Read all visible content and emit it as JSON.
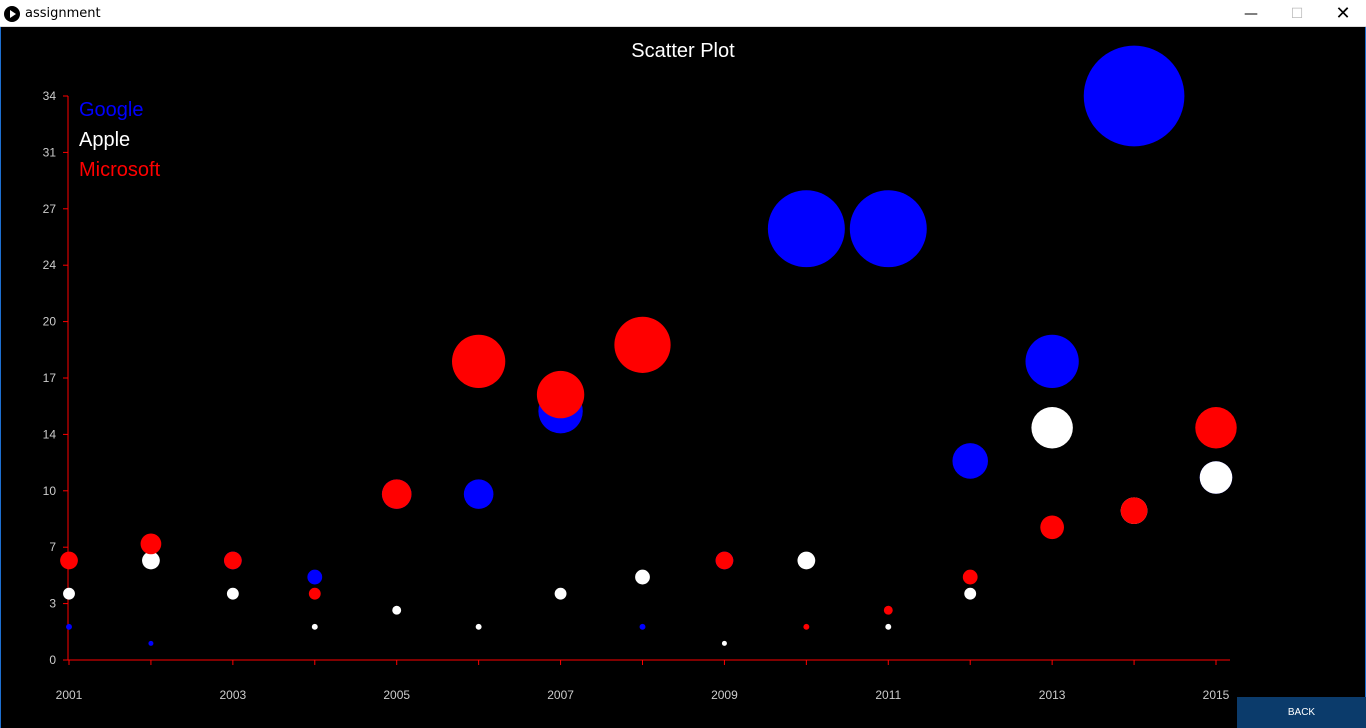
{
  "window": {
    "title": "assignment",
    "minimize": "—",
    "maximize": "☐",
    "close": "✕"
  },
  "back_label": "BACK",
  "colors": {
    "google": "#0000ff",
    "apple": "#ffffff",
    "microsoft": "#ff0000",
    "axis": "#ff0000",
    "tick_text": "#cccccc",
    "back_bg": "#0b3b6b"
  },
  "chart_data": {
    "type": "scatter",
    "title": "Scatter Plot",
    "xlabel": "",
    "ylabel": "",
    "x": [
      2001,
      2002,
      2003,
      2004,
      2005,
      2006,
      2007,
      2008,
      2009,
      2010,
      2011,
      2012,
      2013,
      2014,
      2015
    ],
    "x_tick_labels": [
      "2001",
      "2003",
      "2005",
      "2007",
      "2009",
      "2011",
      "2013",
      "2015"
    ],
    "y_tick_labels": [
      "0",
      "3",
      "7",
      "10",
      "14",
      "17",
      "20",
      "24",
      "27",
      "31",
      "34"
    ],
    "ylim": [
      0,
      34
    ],
    "legend_position": "top-left",
    "series": [
      {
        "name": "Google",
        "color": "#0000ff",
        "values": [
          2,
          1,
          6,
          5,
          10,
          10,
          15,
          2,
          6,
          26,
          26,
          12,
          18,
          34,
          11
        ]
      },
      {
        "name": "Apple",
        "color": "#ffffff",
        "values": [
          4,
          6,
          4,
          2,
          3,
          2,
          4,
          5,
          1,
          6,
          2,
          4,
          14,
          9,
          11
        ]
      },
      {
        "name": "Microsoft",
        "color": "#ff0000",
        "values": [
          6,
          7,
          6,
          4,
          10,
          18,
          16,
          19,
          6,
          2,
          3,
          5,
          8,
          9,
          14
        ]
      }
    ],
    "note": "Marker size grows with value."
  }
}
